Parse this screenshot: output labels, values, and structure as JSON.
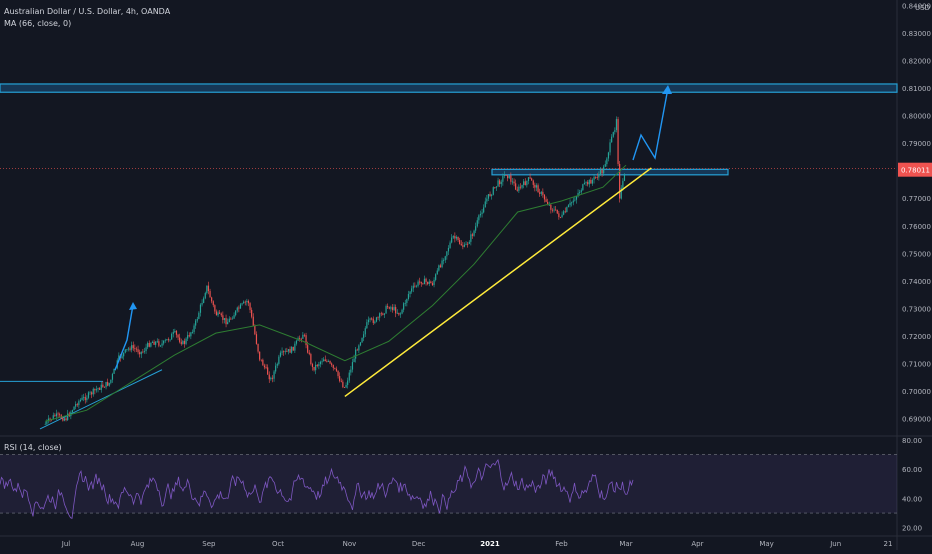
{
  "header": {
    "symbol_line": "Australian Dollar / U.S. Dollar, 4h, OANDA",
    "ma_line": "MA (66, close, 0)",
    "currency": "USD"
  },
  "rsi_pane": {
    "label": "RSI (14, close)",
    "ticks": [
      "80.00",
      "60.00",
      "40.00",
      "20.00"
    ]
  },
  "price_badge": "0.78011",
  "chart_data": [
    {
      "type": "candlestick",
      "title": "Australian Dollar / U.S. Dollar, 4h, OANDA",
      "price_ticks": [
        "0.84000",
        "0.83000",
        "0.82000",
        "0.81000",
        "0.80000",
        "0.79000",
        "0.78000",
        "0.77000",
        "0.76000",
        "0.75000",
        "0.74000",
        "0.73000",
        "0.72000",
        "0.71000",
        "0.70000",
        "0.69000"
      ],
      "x_ticks": [
        "Jul",
        "Aug",
        "Sep",
        "Oct",
        "Nov",
        "Dec",
        "2021",
        "Feb",
        "Mar",
        "Apr",
        "May",
        "Jun",
        "21"
      ],
      "ylim": [
        0.684,
        0.842
      ],
      "series": [
        {
          "name": "Close (approx.)",
          "points": [
            [
              "Jun 22",
              0.688
            ],
            [
              "Jun 26",
              0.691
            ],
            [
              "Jul 1",
              0.69
            ],
            [
              "Jul 6",
              0.696
            ],
            [
              "Jul 10",
              0.698
            ],
            [
              "Jul 15",
              0.701
            ],
            [
              "Jul 20",
              0.703
            ],
            [
              "Jul 24",
              0.712
            ],
            [
              "Jul 29",
              0.716
            ],
            [
              "Aug 3",
              0.714
            ],
            [
              "Aug 7",
              0.718
            ],
            [
              "Aug 12",
              0.717
            ],
            [
              "Aug 17",
              0.721
            ],
            [
              "Aug 21",
              0.717
            ],
            [
              "Aug 26",
              0.724
            ],
            [
              "Aug 31",
              0.738
            ],
            [
              "Sep 4",
              0.728
            ],
            [
              "Sep 9",
              0.725
            ],
            [
              "Sep 14",
              0.73
            ],
            [
              "Sep 18",
              0.733
            ],
            [
              "Sep 23",
              0.712
            ],
            [
              "Sep 28",
              0.704
            ],
            [
              "Oct 2",
              0.713
            ],
            [
              "Oct 7",
              0.715
            ],
            [
              "Oct 12",
              0.721
            ],
            [
              "Oct 16",
              0.708
            ],
            [
              "Oct 21",
              0.712
            ],
            [
              "Oct 26",
              0.707
            ],
            [
              "Oct 30",
              0.701
            ],
            [
              "Nov 4",
              0.715
            ],
            [
              "Nov 9",
              0.725
            ],
            [
              "Nov 13",
              0.726
            ],
            [
              "Nov 18",
              0.731
            ],
            [
              "Nov 23",
              0.728
            ],
            [
              "Nov 27",
              0.736
            ],
            [
              "Dec 2",
              0.74
            ],
            [
              "Dec 7",
              0.739
            ],
            [
              "Dec 11",
              0.747
            ],
            [
              "Dec 16",
              0.756
            ],
            [
              "Dec 21",
              0.752
            ],
            [
              "Dec 25",
              0.758
            ],
            [
              "Dec 30",
              0.769
            ],
            [
              "Jan 4",
              0.775
            ],
            [
              "Jan 8",
              0.779
            ],
            [
              "Jan 13",
              0.773
            ],
            [
              "Jan 18",
              0.777
            ],
            [
              "Jan 22",
              0.773
            ],
            [
              "Jan 27",
              0.767
            ],
            [
              "Feb 1",
              0.763
            ],
            [
              "Feb 5",
              0.768
            ],
            [
              "Feb 10",
              0.774
            ],
            [
              "Feb 15",
              0.777
            ],
            [
              "Feb 19",
              0.78
            ],
            [
              "Feb 24",
              0.795
            ],
            [
              "Feb 25",
              0.8
            ],
            [
              "Feb 26",
              0.77
            ],
            [
              "Mar 1",
              0.78
            ]
          ]
        },
        {
          "name": "MA (66, close, 0)",
          "points": [
            [
              "Jun 22",
              0.689
            ],
            [
              "Jul 10",
              0.693
            ],
            [
              "Jul 29",
              0.703
            ],
            [
              "Aug 17",
              0.713
            ],
            [
              "Sep 4",
              0.721
            ],
            [
              "Sep 23",
              0.724
            ],
            [
              "Oct 12",
              0.718
            ],
            [
              "Oct 30",
              0.711
            ],
            [
              "Nov 18",
              0.718
            ],
            [
              "Dec 7",
              0.731
            ],
            [
              "Dec 25",
              0.746
            ],
            [
              "Jan 13",
              0.765
            ],
            [
              "Feb 1",
              0.769
            ],
            [
              "Feb 19",
              0.774
            ],
            [
              "Mar 1",
              0.782
            ]
          ]
        }
      ],
      "annotations": {
        "resistance_zone": [
          0.8085,
          0.8115
        ],
        "mid_zone": [
          0.7785,
          0.7805
        ],
        "trendline": [
          [
            "Oct 30",
            0.698
          ],
          [
            "Mar 12",
            0.781
          ]
        ],
        "target_price": 0.81
      }
    },
    {
      "type": "line",
      "title": "RSI (14, close)",
      "ylim": [
        15,
        82
      ],
      "bands": [
        30,
        70
      ],
      "y_ticks": [
        "80.00",
        "60.00",
        "40.00",
        "20.00"
      ]
    }
  ]
}
